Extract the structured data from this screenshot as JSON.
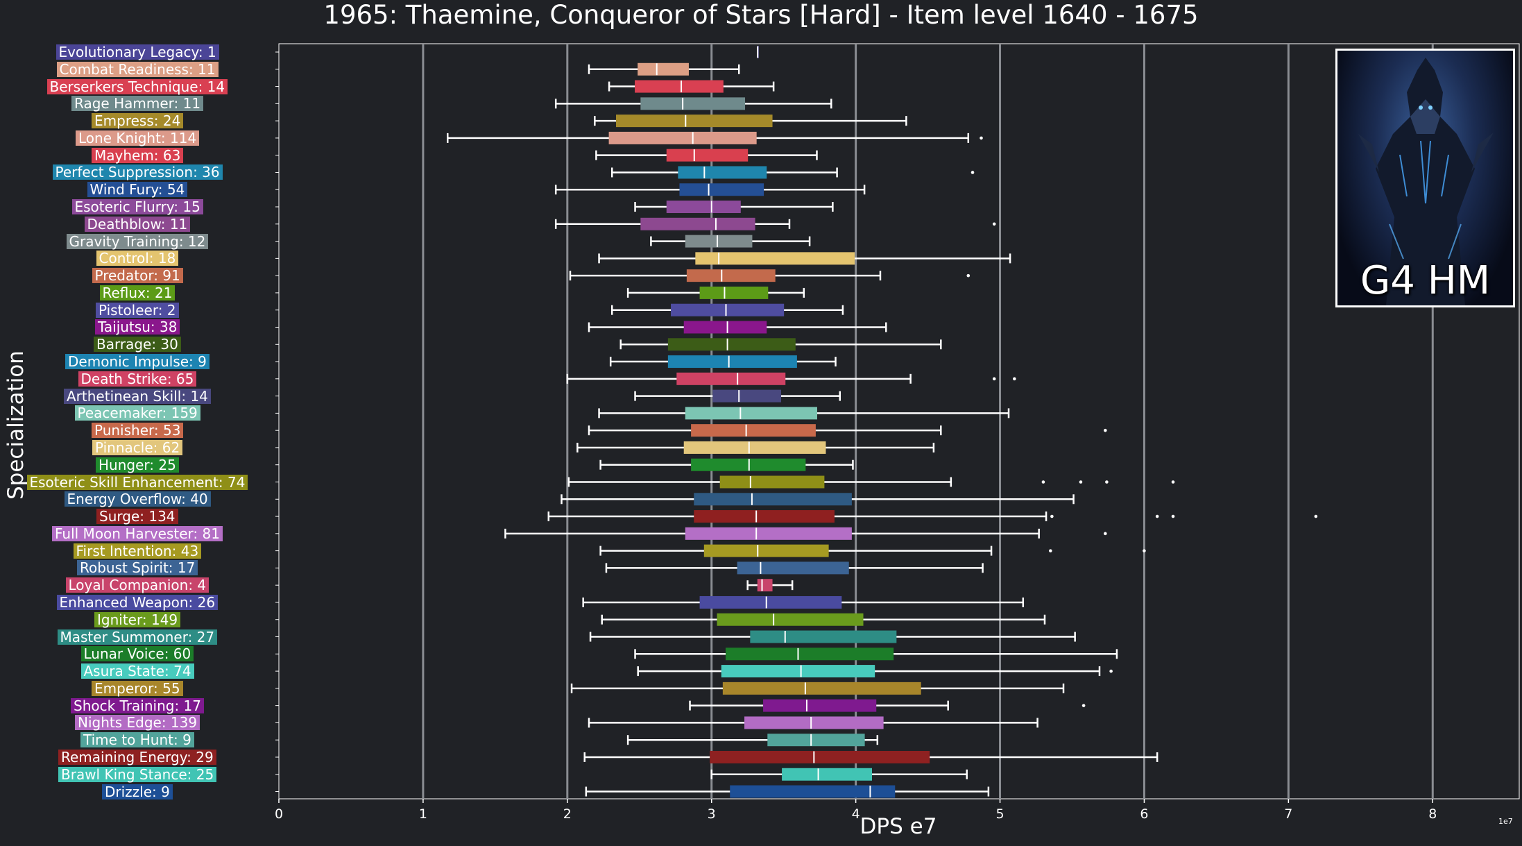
{
  "chart_data": {
    "type": "box",
    "title": "1965: Thaemine, Conqueror of Stars [Hard] - Item level 1640 - 1675",
    "xlabel": "DPS e7",
    "ylabel": "Specialization",
    "x_scale_note": "1e7",
    "xlim": [
      0,
      8.6
    ],
    "xticks": [
      0,
      1,
      2,
      3,
      4,
      5,
      6,
      7,
      8
    ],
    "grid": "vertical",
    "orientation": "horizontal",
    "inset_image_caption": "G4 HM",
    "categories": [
      {
        "label": "Evolutionary Legacy: 1",
        "color": "#4b4597",
        "wlo": 3.32,
        "q1": 3.32,
        "med": 3.32,
        "q3": 3.32,
        "whi": 3.32,
        "outliers": []
      },
      {
        "label": "Combat Readiness: 11",
        "color": "#dc9f85",
        "wlo": 2.15,
        "q1": 2.49,
        "med": 2.62,
        "q3": 2.84,
        "whi": 3.19,
        "outliers": []
      },
      {
        "label": "Berserkers Technique: 14",
        "color": "#d94052",
        "wlo": 2.29,
        "q1": 2.47,
        "med": 2.79,
        "q3": 3.08,
        "whi": 3.43,
        "outliers": []
      },
      {
        "label": "Rage Hammer: 11",
        "color": "#6f8a8c",
        "wlo": 1.92,
        "q1": 2.51,
        "med": 2.8,
        "q3": 3.23,
        "whi": 3.83,
        "outliers": []
      },
      {
        "label": "Empress: 24",
        "color": "#a58a2a",
        "wlo": 2.19,
        "q1": 2.34,
        "med": 2.82,
        "q3": 3.42,
        "whi": 4.35,
        "outliers": []
      },
      {
        "label": "Lone Knight: 114",
        "color": "#dc9a8a",
        "wlo": 1.17,
        "q1": 2.29,
        "med": 2.87,
        "q3": 3.31,
        "whi": 4.78,
        "outliers": [
          4.87
        ]
      },
      {
        "label": "Mayhem: 63",
        "color": "#d9404f",
        "wlo": 2.2,
        "q1": 2.69,
        "med": 2.88,
        "q3": 3.25,
        "whi": 3.73,
        "outliers": []
      },
      {
        "label": "Perfect Suppression: 36",
        "color": "#1f86ad",
        "wlo": 2.31,
        "q1": 2.77,
        "med": 2.95,
        "q3": 3.38,
        "whi": 3.87,
        "outliers": [
          4.81
        ]
      },
      {
        "label": "Wind Fury: 54",
        "color": "#244f95",
        "wlo": 1.92,
        "q1": 2.78,
        "med": 2.98,
        "q3": 3.36,
        "whi": 4.06,
        "outliers": []
      },
      {
        "label": "Esoteric Flurry: 15",
        "color": "#8c4a9a",
        "wlo": 2.47,
        "q1": 2.69,
        "med": 3.0,
        "q3": 3.2,
        "whi": 3.84,
        "outliers": []
      },
      {
        "label": "Deathblow: 11",
        "color": "#8d4990",
        "wlo": 1.92,
        "q1": 2.51,
        "med": 3.03,
        "q3": 3.3,
        "whi": 3.54,
        "outliers": [
          4.96
        ]
      },
      {
        "label": "Gravity Training: 12",
        "color": "#7e8b8d",
        "wlo": 2.58,
        "q1": 2.82,
        "med": 3.04,
        "q3": 3.28,
        "whi": 3.68,
        "outliers": []
      },
      {
        "label": "Control: 18",
        "color": "#e4c46f",
        "wlo": 2.22,
        "q1": 2.89,
        "med": 3.05,
        "q3": 3.99,
        "whi": 5.07,
        "outliers": []
      },
      {
        "label": "Predator: 91",
        "color": "#c36a4c",
        "wlo": 2.02,
        "q1": 2.83,
        "med": 3.07,
        "q3": 3.44,
        "whi": 4.17,
        "outliers": [
          4.78
        ]
      },
      {
        "label": "Reflux: 21",
        "color": "#5c9b17",
        "wlo": 2.42,
        "q1": 2.92,
        "med": 3.09,
        "q3": 3.39,
        "whi": 3.64,
        "outliers": []
      },
      {
        "label": "Pistoleer: 2",
        "color": "#4f4da0",
        "wlo": 2.31,
        "q1": 2.72,
        "med": 3.1,
        "q3": 3.5,
        "whi": 3.91,
        "outliers": []
      },
      {
        "label": "Taijutsu: 38",
        "color": "#8a178c",
        "wlo": 2.15,
        "q1": 2.81,
        "med": 3.11,
        "q3": 3.38,
        "whi": 4.21,
        "outliers": []
      },
      {
        "label": "Barrage: 30",
        "color": "#3c5c17",
        "wlo": 2.37,
        "q1": 2.7,
        "med": 3.11,
        "q3": 3.58,
        "whi": 4.59,
        "outliers": []
      },
      {
        "label": "Demonic Impulse: 9",
        "color": "#1d84b2",
        "wlo": 2.3,
        "q1": 2.7,
        "med": 3.12,
        "q3": 3.59,
        "whi": 3.86,
        "outliers": []
      },
      {
        "label": "Death Strike: 65",
        "color": "#cf4264",
        "wlo": 2.0,
        "q1": 2.76,
        "med": 3.18,
        "q3": 3.51,
        "whi": 4.38,
        "outliers": [
          4.96,
          5.1
        ]
      },
      {
        "label": "Arthetinean Skill: 14",
        "color": "#49487f",
        "wlo": 2.47,
        "q1": 3.01,
        "med": 3.19,
        "q3": 3.48,
        "whi": 3.89,
        "outliers": []
      },
      {
        "label": "Peacemaker: 159",
        "color": "#7cc5b3",
        "wlo": 2.22,
        "q1": 2.82,
        "med": 3.2,
        "q3": 3.73,
        "whi": 5.06,
        "outliers": []
      },
      {
        "label": "Punisher: 53",
        "color": "#c8694b",
        "wlo": 2.15,
        "q1": 2.86,
        "med": 3.24,
        "q3": 3.72,
        "whi": 4.59,
        "outliers": [
          5.73
        ]
      },
      {
        "label": "Pinnacle: 62",
        "color": "#e2c67c",
        "wlo": 2.07,
        "q1": 2.81,
        "med": 3.26,
        "q3": 3.79,
        "whi": 4.54,
        "outliers": []
      },
      {
        "label": "Hunger: 25",
        "color": "#1f8b2d",
        "wlo": 2.23,
        "q1": 2.86,
        "med": 3.26,
        "q3": 3.65,
        "whi": 3.98,
        "outliers": []
      },
      {
        "label": "Esoteric Skill Enhancement: 74",
        "color": "#8f8f17",
        "wlo": 2.01,
        "q1": 3.06,
        "med": 3.27,
        "q3": 3.78,
        "whi": 4.66,
        "outliers": [
          5.3,
          5.56,
          5.74,
          6.2
        ]
      },
      {
        "label": "Energy Overflow: 40",
        "color": "#2f5a83",
        "wlo": 1.96,
        "q1": 2.88,
        "med": 3.28,
        "q3": 3.97,
        "whi": 5.51,
        "outliers": []
      },
      {
        "label": "Surge: 134",
        "color": "#8f2020",
        "wlo": 1.87,
        "q1": 2.88,
        "med": 3.31,
        "q3": 3.85,
        "whi": 5.32,
        "outliers": [
          5.36,
          6.09,
          6.2,
          7.19
        ]
      },
      {
        "label": "Full Moon Harvester: 81",
        "color": "#b46fc6",
        "wlo": 1.57,
        "q1": 2.82,
        "med": 3.31,
        "q3": 3.97,
        "whi": 5.27,
        "outliers": [
          5.73
        ]
      },
      {
        "label": "First Intention: 43",
        "color": "#a69a22",
        "wlo": 2.23,
        "q1": 2.95,
        "med": 3.32,
        "q3": 3.81,
        "whi": 4.94,
        "outliers": [
          5.35,
          6.0
        ]
      },
      {
        "label": "Robust Spirit: 17",
        "color": "#3c6494",
        "wlo": 2.27,
        "q1": 3.18,
        "med": 3.34,
        "q3": 3.95,
        "whi": 4.88,
        "outliers": []
      },
      {
        "label": "Loyal Companion: 4",
        "color": "#c8446b",
        "wlo": 3.25,
        "q1": 3.32,
        "med": 3.35,
        "q3": 3.42,
        "whi": 3.56,
        "outliers": []
      },
      {
        "label": "Enhanced Weapon: 26",
        "color": "#4a4ba0",
        "wlo": 2.11,
        "q1": 2.92,
        "med": 3.38,
        "q3": 3.9,
        "whi": 5.16,
        "outliers": []
      },
      {
        "label": "Igniter: 149",
        "color": "#6a9b1d",
        "wlo": 2.24,
        "q1": 3.04,
        "med": 3.43,
        "q3": 4.05,
        "whi": 5.31,
        "outliers": []
      },
      {
        "label": "Master Summoner: 27",
        "color": "#2e8d85",
        "wlo": 2.16,
        "q1": 3.27,
        "med": 3.51,
        "q3": 4.28,
        "whi": 5.52,
        "outliers": []
      },
      {
        "label": "Lunar Voice: 60",
        "color": "#1c7d29",
        "wlo": 2.47,
        "q1": 3.1,
        "med": 3.6,
        "q3": 4.26,
        "whi": 5.81,
        "outliers": []
      },
      {
        "label": "Asura State: 74",
        "color": "#48cbbd",
        "wlo": 2.49,
        "q1": 3.07,
        "med": 3.62,
        "q3": 4.13,
        "whi": 5.69,
        "outliers": [
          5.77
        ]
      },
      {
        "label": "Emperor: 55",
        "color": "#a8862b",
        "wlo": 2.03,
        "q1": 3.08,
        "med": 3.65,
        "q3": 4.45,
        "whi": 5.44,
        "outliers": []
      },
      {
        "label": "Shock Training: 17",
        "color": "#7f1a8f",
        "wlo": 2.85,
        "q1": 3.36,
        "med": 3.66,
        "q3": 4.14,
        "whi": 4.64,
        "outliers": [
          5.58
        ]
      },
      {
        "label": "Nights Edge: 139",
        "color": "#b36cc4",
        "wlo": 2.15,
        "q1": 3.23,
        "med": 3.69,
        "q3": 4.19,
        "whi": 5.26,
        "outliers": []
      },
      {
        "label": "Time to Hunt: 9",
        "color": "#52a49b",
        "wlo": 2.42,
        "q1": 3.39,
        "med": 3.69,
        "q3": 4.06,
        "whi": 4.15,
        "outliers": []
      },
      {
        "label": "Remaining Energy: 29",
        "color": "#8e2121",
        "wlo": 2.12,
        "q1": 2.99,
        "med": 3.71,
        "q3": 4.51,
        "whi": 6.09,
        "outliers": []
      },
      {
        "label": "Brawl King Stance: 25",
        "color": "#41c4b4",
        "wlo": 3.0,
        "q1": 3.49,
        "med": 3.74,
        "q3": 4.11,
        "whi": 4.77,
        "outliers": []
      },
      {
        "label": "Drizzle: 9",
        "color": "#1d4f96",
        "wlo": 2.13,
        "q1": 3.13,
        "med": 4.1,
        "q3": 4.27,
        "whi": 4.92,
        "outliers": []
      }
    ]
  }
}
